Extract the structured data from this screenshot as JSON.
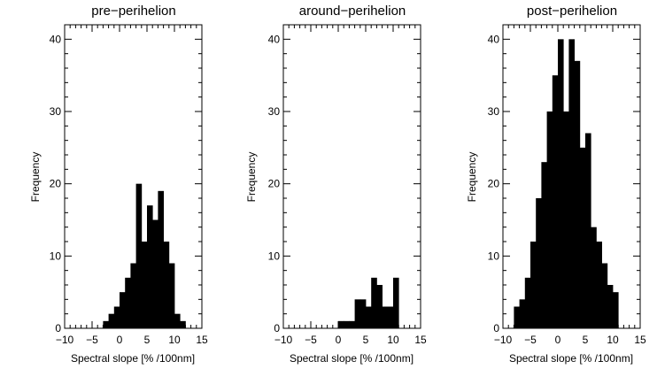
{
  "figure": {
    "background": "#ffffff",
    "bar_color": "#000000"
  },
  "chart_data": [
    {
      "type": "bar",
      "title": "pre−perihelion",
      "xlabel": "Spectral slope [% /100nm]",
      "ylabel": "Frequency",
      "xlim": [
        -10,
        15
      ],
      "ylim": [
        0,
        42
      ],
      "xticks": [
        -10,
        -5,
        0,
        5,
        10,
        15
      ],
      "xtick_labels": [
        "−10",
        "−5",
        "0",
        "5",
        "10",
        "15"
      ],
      "yticks": [
        0,
        10,
        20,
        30,
        40
      ],
      "ytick_labels": [
        "0",
        "10",
        "20",
        "30",
        "40"
      ],
      "grid": false,
      "bin_width": 1,
      "bin_starts": [
        -3,
        -2,
        -1,
        0,
        1,
        2,
        3,
        4,
        5,
        6,
        7,
        8,
        9,
        10,
        11
      ],
      "values": [
        1,
        2,
        3,
        5,
        7,
        9,
        20,
        12,
        17,
        15,
        19,
        12,
        9,
        2,
        1
      ]
    },
    {
      "type": "bar",
      "title": "around−perihelion",
      "xlabel": "Spectral slope [% /100nm]",
      "ylabel": "Frequency",
      "xlim": [
        -10,
        15
      ],
      "ylim": [
        0,
        42
      ],
      "xticks": [
        -10,
        -5,
        0,
        5,
        10,
        15
      ],
      "xtick_labels": [
        "−10",
        "−5",
        "0",
        "5",
        "10",
        "15"
      ],
      "yticks": [
        0,
        10,
        20,
        30,
        40
      ],
      "ytick_labels": [
        "0",
        "10",
        "20",
        "30",
        "40"
      ],
      "grid": false,
      "bin_width": 1,
      "bin_starts": [
        0,
        1,
        2,
        3,
        4,
        5,
        6,
        7,
        8,
        9,
        10
      ],
      "values": [
        1,
        1,
        1,
        4,
        4,
        3,
        7,
        6,
        3,
        3,
        7
      ]
    },
    {
      "type": "bar",
      "title": "post−perihelion",
      "xlabel": "Spectral slope [% /100nm]",
      "ylabel": "Frequency",
      "xlim": [
        -10,
        15
      ],
      "ylim": [
        0,
        42
      ],
      "xticks": [
        -10,
        -5,
        0,
        5,
        10,
        15
      ],
      "xtick_labels": [
        "−10",
        "−5",
        "0",
        "5",
        "10",
        "15"
      ],
      "yticks": [
        0,
        10,
        20,
        30,
        40
      ],
      "ytick_labels": [
        "0",
        "10",
        "20",
        "30",
        "40"
      ],
      "grid": false,
      "bin_width": 1,
      "bin_starts": [
        -8,
        -7,
        -6,
        -5,
        -4,
        -3,
        -2,
        -1,
        0,
        1,
        2,
        3,
        4,
        5,
        6,
        7,
        8,
        9,
        10
      ],
      "values": [
        3,
        4,
        7,
        12,
        18,
        23,
        30,
        35,
        40,
        30,
        40,
        37,
        25,
        27,
        14,
        12,
        9,
        6,
        5
      ]
    }
  ]
}
